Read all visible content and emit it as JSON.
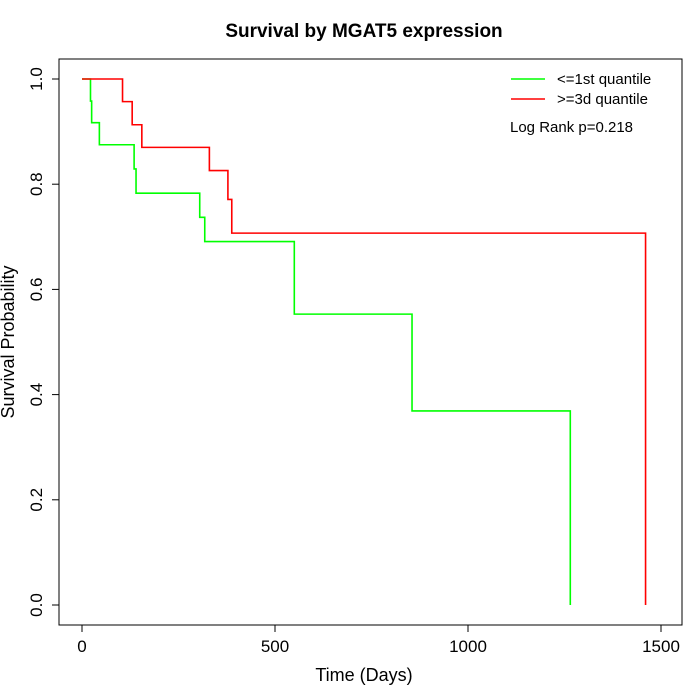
{
  "chart_data": {
    "type": "line",
    "title": "Survival by MGAT5 expression",
    "xlabel": "Time (Days)",
    "ylabel": "Survival Probability",
    "xlim": [
      0,
      1500
    ],
    "ylim": [
      0,
      1
    ],
    "x_ticks": [
      0,
      500,
      1000,
      1500
    ],
    "x_tick_labels": [
      "0",
      "500",
      "1000",
      "1500"
    ],
    "y_ticks": [
      0,
      0.2,
      0.4,
      0.6,
      0.8,
      1.0
    ],
    "y_tick_labels": [
      "0.0",
      "0.2",
      "0.4",
      "0.6",
      "0.8",
      "1.0"
    ],
    "grid": false,
    "legend_position": "top-right",
    "annotation": "Log Rank p=0.218",
    "series": [
      {
        "name": "<=1st quantile",
        "color": "#00ff00",
        "steps": [
          [
            0,
            1.0
          ],
          [
            22,
            1.0
          ],
          [
            22,
            0.958
          ],
          [
            25,
            0.958
          ],
          [
            25,
            0.917
          ],
          [
            45,
            0.917
          ],
          [
            45,
            0.875
          ],
          [
            135,
            0.875
          ],
          [
            135,
            0.829
          ],
          [
            140,
            0.829
          ],
          [
            140,
            0.783
          ],
          [
            305,
            0.783
          ],
          [
            305,
            0.737
          ],
          [
            318,
            0.737
          ],
          [
            318,
            0.691
          ],
          [
            550,
            0.691
          ],
          [
            550,
            0.553
          ],
          [
            855,
            0.553
          ],
          [
            855,
            0.369
          ],
          [
            1265,
            0.369
          ],
          [
            1265,
            0.0
          ]
        ]
      },
      {
        "name": ">=3d quantile",
        "color": "#ff0000",
        "steps": [
          [
            0,
            1.0
          ],
          [
            105,
            1.0
          ],
          [
            105,
            0.957
          ],
          [
            130,
            0.957
          ],
          [
            130,
            0.913
          ],
          [
            155,
            0.913
          ],
          [
            155,
            0.87
          ],
          [
            330,
            0.87
          ],
          [
            330,
            0.826
          ],
          [
            378,
            0.826
          ],
          [
            378,
            0.771
          ],
          [
            388,
            0.771
          ],
          [
            388,
            0.707
          ],
          [
            1460,
            0.707
          ],
          [
            1460,
            0.0
          ]
        ]
      }
    ]
  }
}
